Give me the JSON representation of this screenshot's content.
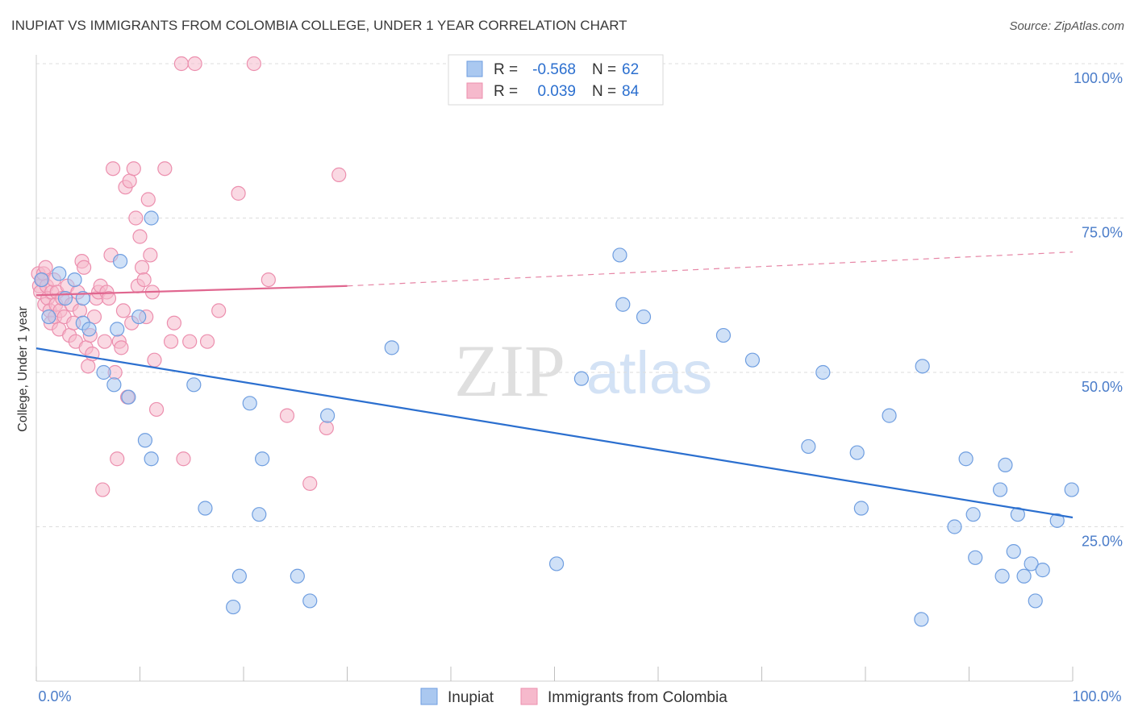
{
  "header": {
    "title": "INUPIAT VS IMMIGRANTS FROM COLOMBIA COLLEGE, UNDER 1 YEAR CORRELATION CHART",
    "source": "Source: ZipAtlas.com"
  },
  "watermark": {
    "zip": "ZIP",
    "atlas": "atlas"
  },
  "legend_box": {
    "rows": [
      {
        "r_label": "R =",
        "r_value": "-0.568",
        "n_label": "N =",
        "n_value": "62"
      },
      {
        "r_label": "R =",
        "r_value": "0.039",
        "n_label": "N =",
        "n_value": "84"
      }
    ]
  },
  "bottom_legend": [
    "Inupiat",
    "Immigrants from Colombia"
  ],
  "colors": {
    "inupiat_fill": "#aac8f0",
    "inupiat_stroke": "#6f9ee0",
    "inupiat_line": "#2b6fcf",
    "colombia_fill": "#f6b9cc",
    "colombia_stroke": "#ec8fae",
    "colombia_line": "#e0668f",
    "axis_label": "#4a7cc9",
    "grid": "#dddddd"
  },
  "chart_data": {
    "type": "scatter",
    "ylabel": "College, Under 1 year",
    "xlim": [
      0,
      100
    ],
    "ylim": [
      0,
      100
    ],
    "x_tick_labels": [
      "0.0%",
      "100.0%"
    ],
    "y_tick_labels": [
      "25.0%",
      "50.0%",
      "75.0%",
      "100.0%"
    ],
    "y_ticks": [
      25,
      50,
      75,
      100
    ],
    "grid": true,
    "series": [
      {
        "name": "Inupiat",
        "trend": {
          "x": [
            0,
            100
          ],
          "y": [
            53.9,
            26.5
          ]
        },
        "points": [
          [
            0.5,
            65
          ],
          [
            1.2,
            59
          ],
          [
            2.2,
            66
          ],
          [
            2.8,
            62
          ],
          [
            3.7,
            65
          ],
          [
            4.5,
            62
          ],
          [
            4.5,
            58
          ],
          [
            5.1,
            57
          ],
          [
            6.5,
            50
          ],
          [
            7.5,
            48
          ],
          [
            7.8,
            57
          ],
          [
            8.1,
            68
          ],
          [
            8.9,
            46
          ],
          [
            9.9,
            59
          ],
          [
            10.5,
            39
          ],
          [
            11.1,
            36
          ],
          [
            11.1,
            75
          ],
          [
            15.2,
            48
          ],
          [
            16.3,
            28
          ],
          [
            19.0,
            12
          ],
          [
            19.6,
            17
          ],
          [
            20.6,
            45
          ],
          [
            21.5,
            27
          ],
          [
            21.8,
            36
          ],
          [
            25.2,
            17
          ],
          [
            26.4,
            13
          ],
          [
            28.1,
            43
          ],
          [
            34.3,
            54
          ],
          [
            50.2,
            19
          ],
          [
            52.6,
            49
          ],
          [
            56.3,
            69
          ],
          [
            56.6,
            61
          ],
          [
            58.6,
            59
          ],
          [
            66.3,
            56
          ],
          [
            69.1,
            52
          ],
          [
            74.5,
            38
          ],
          [
            75.9,
            50
          ],
          [
            79.2,
            37
          ],
          [
            79.6,
            28
          ],
          [
            82.3,
            43
          ],
          [
            85.4,
            10
          ],
          [
            85.5,
            51
          ],
          [
            88.6,
            25
          ],
          [
            89.7,
            36
          ],
          [
            90.4,
            27
          ],
          [
            90.6,
            20
          ],
          [
            93.0,
            31
          ],
          [
            93.2,
            17
          ],
          [
            93.5,
            35
          ],
          [
            94.3,
            21
          ],
          [
            94.7,
            27
          ],
          [
            95.3,
            17
          ],
          [
            96.0,
            19
          ],
          [
            96.4,
            13
          ],
          [
            97.1,
            18
          ],
          [
            98.5,
            26
          ],
          [
            99.9,
            31
          ]
        ]
      },
      {
        "name": "Immigrants from Colombia",
        "trend": {
          "x": [
            0,
            30
          ],
          "y": [
            62.5,
            64.0
          ]
        },
        "trend_dashed": {
          "x": [
            30,
            100
          ],
          "y": [
            64.0,
            69.5
          ]
        },
        "points": [
          [
            0.2,
            66
          ],
          [
            0.3,
            64
          ],
          [
            0.4,
            63
          ],
          [
            0.6,
            65
          ],
          [
            0.7,
            66
          ],
          [
            0.8,
            61
          ],
          [
            0.9,
            67
          ],
          [
            1.0,
            64
          ],
          [
            1.1,
            62
          ],
          [
            1.3,
            60
          ],
          [
            1.4,
            58
          ],
          [
            1.5,
            63
          ],
          [
            1.7,
            65
          ],
          [
            1.8,
            59
          ],
          [
            1.9,
            61
          ],
          [
            2.0,
            63
          ],
          [
            2.2,
            57
          ],
          [
            2.3,
            60
          ],
          [
            2.5,
            62
          ],
          [
            2.7,
            59
          ],
          [
            3.0,
            64
          ],
          [
            3.2,
            56
          ],
          [
            3.4,
            61
          ],
          [
            3.6,
            58
          ],
          [
            3.8,
            55
          ],
          [
            4.0,
            63
          ],
          [
            4.2,
            60
          ],
          [
            4.4,
            68
          ],
          [
            4.6,
            67
          ],
          [
            4.8,
            54
          ],
          [
            5.0,
            51
          ],
          [
            5.2,
            56
          ],
          [
            5.4,
            53
          ],
          [
            5.6,
            59
          ],
          [
            5.8,
            62
          ],
          [
            6.0,
            63
          ],
          [
            6.2,
            64
          ],
          [
            6.4,
            31
          ],
          [
            6.6,
            55
          ],
          [
            6.8,
            63
          ],
          [
            7.0,
            62
          ],
          [
            7.2,
            69
          ],
          [
            7.4,
            83
          ],
          [
            7.6,
            50
          ],
          [
            7.8,
            36
          ],
          [
            8.0,
            55
          ],
          [
            8.2,
            54
          ],
          [
            8.4,
            60
          ],
          [
            8.6,
            80
          ],
          [
            8.8,
            46
          ],
          [
            9.0,
            81
          ],
          [
            9.2,
            58
          ],
          [
            9.4,
            83
          ],
          [
            9.6,
            75
          ],
          [
            9.8,
            64
          ],
          [
            10.0,
            72
          ],
          [
            10.2,
            67
          ],
          [
            10.4,
            65
          ],
          [
            10.6,
            59
          ],
          [
            10.8,
            78
          ],
          [
            11.0,
            69
          ],
          [
            11.2,
            63
          ],
          [
            11.4,
            52
          ],
          [
            11.6,
            44
          ],
          [
            12.4,
            83
          ],
          [
            13.0,
            55
          ],
          [
            13.3,
            58
          ],
          [
            14.0,
            100
          ],
          [
            14.2,
            36
          ],
          [
            14.8,
            55
          ],
          [
            15.3,
            100
          ],
          [
            16.5,
            55
          ],
          [
            17.6,
            60
          ],
          [
            19.5,
            79
          ],
          [
            21.0,
            100
          ],
          [
            22.4,
            65
          ],
          [
            24.2,
            43
          ],
          [
            26.4,
            32
          ],
          [
            28.0,
            41
          ],
          [
            29.2,
            82
          ]
        ]
      }
    ]
  }
}
